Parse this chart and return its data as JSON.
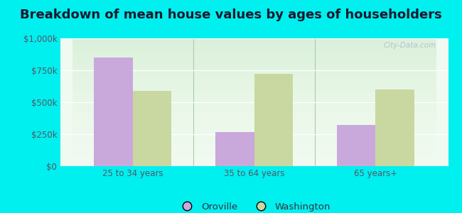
{
  "title": "Breakdown of mean house values by ages of householders",
  "categories": [
    "25 to 34 years",
    "35 to 64 years",
    "65 years+"
  ],
  "oroville_values": [
    850000,
    265000,
    325000
  ],
  "washington_values": [
    590000,
    720000,
    600000
  ],
  "oroville_color": "#c9a8dc",
  "washington_color": "#c8d8a0",
  "background_outer": "#00efef",
  "background_inner_top": "#f0faf0",
  "background_inner_bottom": "#d8eec8",
  "ylim": [
    0,
    1000000
  ],
  "yticks": [
    0,
    250000,
    500000,
    750000,
    1000000
  ],
  "ytick_labels": [
    "$0",
    "$250k",
    "$500k",
    "$750k",
    "$1,000k"
  ],
  "legend_labels": [
    "Oroville",
    "Washington"
  ],
  "watermark": "City-Data.com",
  "title_fontsize": 13,
  "tick_fontsize": 8.5,
  "legend_fontsize": 9.5,
  "bar_width": 0.32,
  "divider_color": "#aaccaa",
  "grid_color": "#ffffff"
}
